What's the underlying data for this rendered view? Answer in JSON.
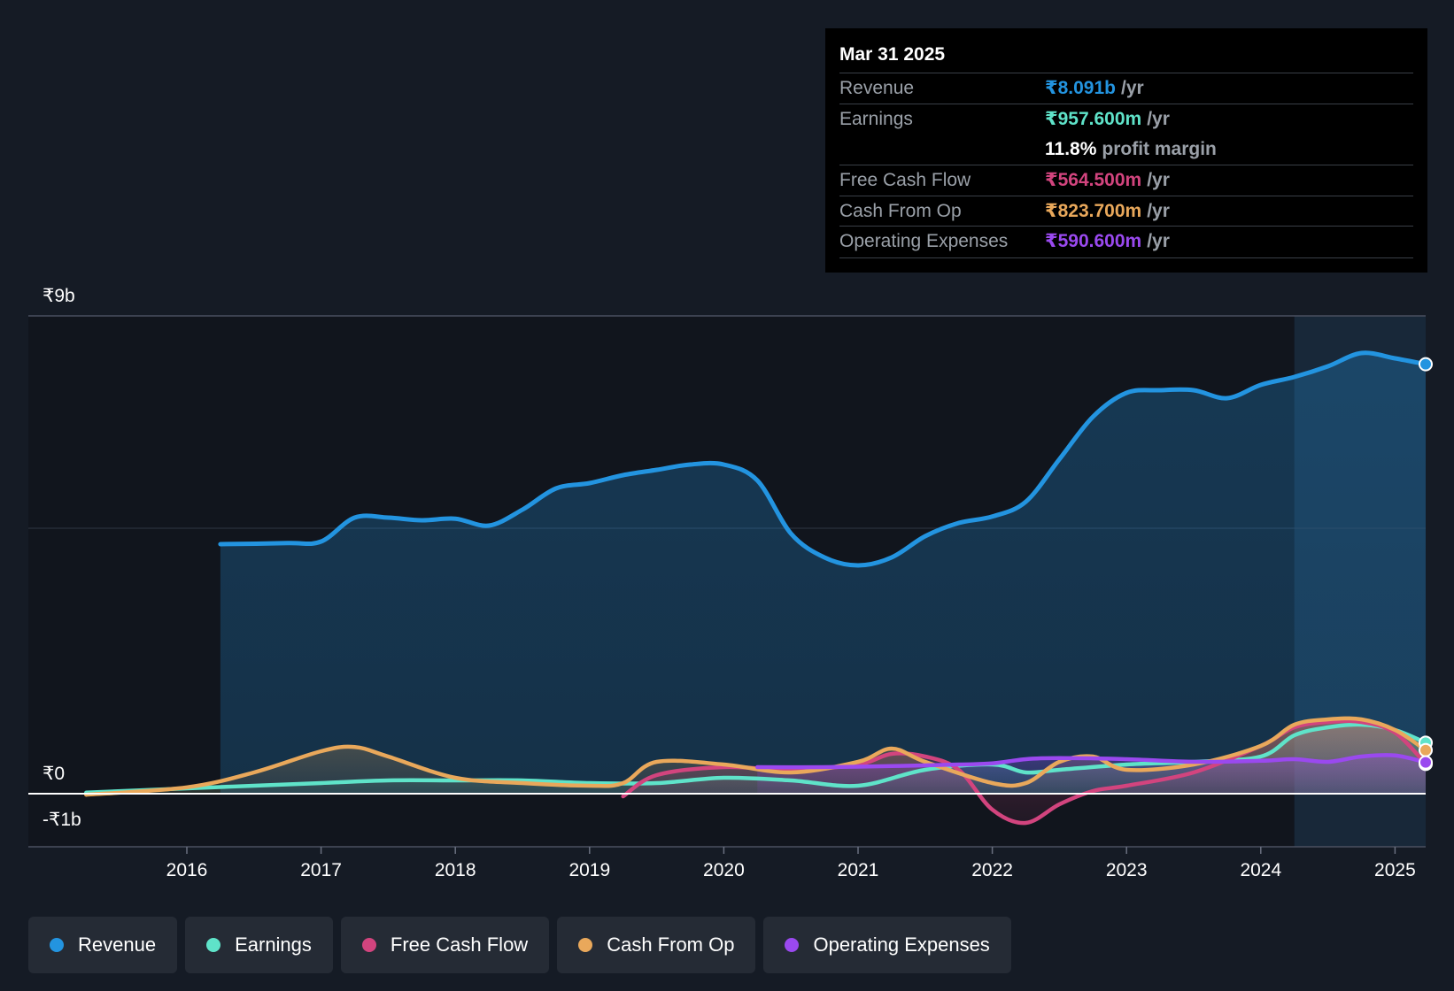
{
  "tooltip": {
    "date": "Mar 31 2025",
    "rows": [
      {
        "label": "Revenue",
        "value": "₹8.091b",
        "unit": "/yr",
        "color": "#2394e0"
      },
      {
        "label": "Earnings",
        "value": "₹957.600m",
        "unit": "/yr",
        "color": "#5fe3c9"
      },
      {
        "label": "Free Cash Flow",
        "value": "₹564.500m",
        "unit": "/yr",
        "color": "#d2447e"
      },
      {
        "label": "Cash From Op",
        "value": "₹823.700m",
        "unit": "/yr",
        "color": "#e9a85b"
      },
      {
        "label": "Operating Expenses",
        "value": "₹590.600m",
        "unit": "/yr",
        "color": "#9a49ef"
      }
    ],
    "profit_margin_value": "11.8%",
    "profit_margin_label": "profit margin"
  },
  "legend": [
    {
      "label": "Revenue",
      "color": "#2394e0"
    },
    {
      "label": "Earnings",
      "color": "#5fe3c9"
    },
    {
      "label": "Free Cash Flow",
      "color": "#d2447e"
    },
    {
      "label": "Cash From Op",
      "color": "#e9a85b"
    },
    {
      "label": "Operating Expenses",
      "color": "#9a49ef"
    }
  ],
  "chart_data": {
    "type": "area",
    "title": "",
    "xlabel": "",
    "ylabel": "",
    "ylim": [
      -1,
      9
    ],
    "xlim": [
      2015.0,
      2025.25
    ],
    "y_tick_labels": [
      {
        "value": 9,
        "label": "₹9b"
      },
      {
        "value": 0,
        "label": "₹0"
      },
      {
        "value": -1,
        "label": "-₹1b"
      }
    ],
    "x_ticks": [
      2016,
      2017,
      2018,
      2019,
      2020,
      2021,
      2022,
      2023,
      2024,
      2025
    ],
    "x_tick_labels": [
      "2016",
      "2017",
      "2018",
      "2019",
      "2020",
      "2021",
      "2022",
      "2023",
      "2024",
      "2025"
    ],
    "highlight_range": [
      2024.25,
      2025.25
    ],
    "series": [
      {
        "name": "Revenue",
        "color": "#2394e0",
        "fill": true,
        "x": [
          2016.25,
          2016.75,
          2017.0,
          2017.25,
          2017.5,
          2017.75,
          2018.0,
          2018.25,
          2018.5,
          2018.75,
          2019.0,
          2019.25,
          2019.5,
          2019.75,
          2020.0,
          2020.25,
          2020.5,
          2020.75,
          2021.0,
          2021.25,
          2021.5,
          2021.75,
          2022.0,
          2022.25,
          2022.5,
          2022.75,
          2023.0,
          2023.25,
          2023.5,
          2023.75,
          2024.0,
          2024.25,
          2024.5,
          2024.75,
          2025.0,
          2025.25
        ],
        "values": [
          4.7,
          4.72,
          4.75,
          5.2,
          5.2,
          5.15,
          5.18,
          5.05,
          5.35,
          5.75,
          5.85,
          6.0,
          6.1,
          6.2,
          6.2,
          5.9,
          4.9,
          4.45,
          4.3,
          4.45,
          4.85,
          5.1,
          5.22,
          5.5,
          6.3,
          7.1,
          7.55,
          7.6,
          7.6,
          7.45,
          7.7,
          7.85,
          8.05,
          8.3,
          8.2,
          8.09
        ]
      },
      {
        "name": "Earnings",
        "color": "#5fe3c9",
        "fill": true,
        "x": [
          2015.25,
          2016.0,
          2016.5,
          2017.0,
          2017.5,
          2018.0,
          2018.5,
          2019.0,
          2019.5,
          2020.0,
          2020.5,
          2021.0,
          2021.5,
          2022.0,
          2022.25,
          2022.5,
          2023.0,
          2023.5,
          2024.0,
          2024.25,
          2024.5,
          2024.75,
          2025.0,
          2025.25
        ],
        "values": [
          0.02,
          0.1,
          0.15,
          0.2,
          0.25,
          0.25,
          0.25,
          0.2,
          0.2,
          0.3,
          0.25,
          0.15,
          0.45,
          0.55,
          0.4,
          0.45,
          0.55,
          0.6,
          0.7,
          1.1,
          1.25,
          1.3,
          1.2,
          0.96
        ]
      },
      {
        "name": "Free Cash Flow",
        "color": "#d2447e",
        "fill": true,
        "x": [
          2019.25,
          2019.5,
          2020.0,
          2020.5,
          2021.0,
          2021.25,
          2021.5,
          2021.75,
          2022.0,
          2022.25,
          2022.5,
          2022.75,
          2023.0,
          2023.5,
          2024.0,
          2024.25,
          2024.5,
          2024.75,
          2025.0,
          2025.25
        ],
        "values": [
          -0.05,
          0.35,
          0.5,
          0.45,
          0.55,
          0.75,
          0.7,
          0.45,
          -0.3,
          -0.55,
          -0.2,
          0.05,
          0.15,
          0.4,
          0.9,
          1.25,
          1.35,
          1.35,
          1.15,
          0.56
        ]
      },
      {
        "name": "Cash From Op",
        "color": "#e9a85b",
        "fill": true,
        "x": [
          2015.25,
          2016.0,
          2016.5,
          2017.0,
          2017.25,
          2017.5,
          2018.0,
          2018.5,
          2019.0,
          2019.25,
          2019.5,
          2020.0,
          2020.5,
          2021.0,
          2021.25,
          2021.5,
          2022.0,
          2022.25,
          2022.5,
          2022.75,
          2023.0,
          2023.5,
          2024.0,
          2024.25,
          2024.5,
          2024.75,
          2025.0,
          2025.25
        ],
        "values": [
          -0.02,
          0.12,
          0.4,
          0.8,
          0.88,
          0.7,
          0.3,
          0.2,
          0.15,
          0.2,
          0.6,
          0.55,
          0.4,
          0.6,
          0.85,
          0.6,
          0.2,
          0.2,
          0.6,
          0.7,
          0.45,
          0.55,
          0.9,
          1.3,
          1.4,
          1.4,
          1.2,
          0.82
        ]
      },
      {
        "name": "Operating Expenses",
        "color": "#9a49ef",
        "fill": true,
        "x": [
          2020.25,
          2020.75,
          2021.25,
          2021.75,
          2022.0,
          2022.25,
          2022.5,
          2023.0,
          2023.5,
          2024.0,
          2024.25,
          2024.5,
          2024.75,
          2025.0,
          2025.25
        ],
        "values": [
          0.5,
          0.5,
          0.52,
          0.55,
          0.57,
          0.65,
          0.67,
          0.65,
          0.6,
          0.62,
          0.65,
          0.6,
          0.7,
          0.72,
          0.59
        ]
      }
    ]
  }
}
